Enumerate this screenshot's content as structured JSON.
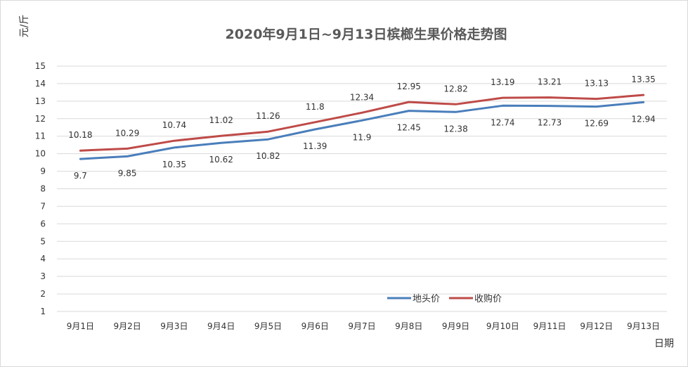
{
  "chart_data": {
    "type": "line",
    "title": "2020年9月1日~9月13日槟榔生果价格走势图",
    "ylabel": "元/斤",
    "xlabel": "日期",
    "categories": [
      "9月1日",
      "9月2日",
      "9月3日",
      "9月4日",
      "9月5日",
      "9月6日",
      "9月7日",
      "9月8日",
      "9月9日",
      "9月10日",
      "9月11日",
      "9月12日",
      "9月13日"
    ],
    "ylim": [
      1,
      15
    ],
    "yticks": [
      1,
      2,
      3,
      4,
      5,
      6,
      7,
      8,
      9,
      10,
      11,
      12,
      13,
      14,
      15
    ],
    "grid": true,
    "legend_position": "bottom-right",
    "series": [
      {
        "name": "地头价",
        "color": "#4a7ebb",
        "values": [
          9.7,
          9.85,
          10.35,
          10.62,
          10.82,
          11.39,
          11.9,
          12.45,
          12.38,
          12.74,
          12.73,
          12.69,
          12.94
        ]
      },
      {
        "name": "收购价",
        "color": "#be4b48",
        "values": [
          10.18,
          10.29,
          10.74,
          11.02,
          11.26,
          11.8,
          12.34,
          12.95,
          12.82,
          13.19,
          13.21,
          13.13,
          13.35
        ]
      }
    ]
  }
}
